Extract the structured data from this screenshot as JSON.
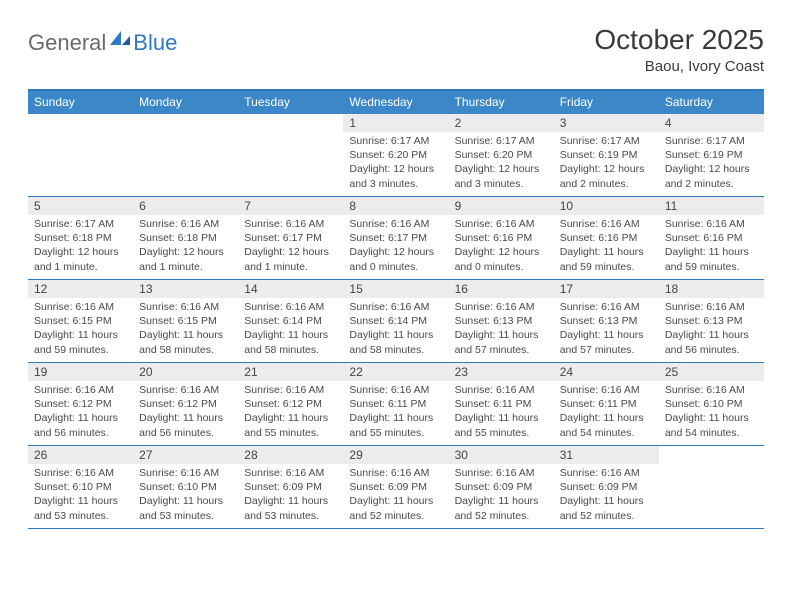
{
  "logo": {
    "part1": "General",
    "part2": "Blue"
  },
  "title": "October 2025",
  "location": "Baou, Ivory Coast",
  "colors": {
    "header_bg": "#3b87c8",
    "border": "#2f78c2",
    "daynum_bg": "#ececec",
    "text": "#4a4a4a"
  },
  "weekdays": [
    "Sunday",
    "Monday",
    "Tuesday",
    "Wednesday",
    "Thursday",
    "Friday",
    "Saturday"
  ],
  "weeks": [
    [
      null,
      null,
      null,
      {
        "n": "1",
        "sr": "Sunrise: 6:17 AM",
        "ss": "Sunset: 6:20 PM",
        "dl": "Daylight: 12 hours and 3 minutes."
      },
      {
        "n": "2",
        "sr": "Sunrise: 6:17 AM",
        "ss": "Sunset: 6:20 PM",
        "dl": "Daylight: 12 hours and 3 minutes."
      },
      {
        "n": "3",
        "sr": "Sunrise: 6:17 AM",
        "ss": "Sunset: 6:19 PM",
        "dl": "Daylight: 12 hours and 2 minutes."
      },
      {
        "n": "4",
        "sr": "Sunrise: 6:17 AM",
        "ss": "Sunset: 6:19 PM",
        "dl": "Daylight: 12 hours and 2 minutes."
      }
    ],
    [
      {
        "n": "5",
        "sr": "Sunrise: 6:17 AM",
        "ss": "Sunset: 6:18 PM",
        "dl": "Daylight: 12 hours and 1 minute."
      },
      {
        "n": "6",
        "sr": "Sunrise: 6:16 AM",
        "ss": "Sunset: 6:18 PM",
        "dl": "Daylight: 12 hours and 1 minute."
      },
      {
        "n": "7",
        "sr": "Sunrise: 6:16 AM",
        "ss": "Sunset: 6:17 PM",
        "dl": "Daylight: 12 hours and 1 minute."
      },
      {
        "n": "8",
        "sr": "Sunrise: 6:16 AM",
        "ss": "Sunset: 6:17 PM",
        "dl": "Daylight: 12 hours and 0 minutes."
      },
      {
        "n": "9",
        "sr": "Sunrise: 6:16 AM",
        "ss": "Sunset: 6:16 PM",
        "dl": "Daylight: 12 hours and 0 minutes."
      },
      {
        "n": "10",
        "sr": "Sunrise: 6:16 AM",
        "ss": "Sunset: 6:16 PM",
        "dl": "Daylight: 11 hours and 59 minutes."
      },
      {
        "n": "11",
        "sr": "Sunrise: 6:16 AM",
        "ss": "Sunset: 6:16 PM",
        "dl": "Daylight: 11 hours and 59 minutes."
      }
    ],
    [
      {
        "n": "12",
        "sr": "Sunrise: 6:16 AM",
        "ss": "Sunset: 6:15 PM",
        "dl": "Daylight: 11 hours and 59 minutes."
      },
      {
        "n": "13",
        "sr": "Sunrise: 6:16 AM",
        "ss": "Sunset: 6:15 PM",
        "dl": "Daylight: 11 hours and 58 minutes."
      },
      {
        "n": "14",
        "sr": "Sunrise: 6:16 AM",
        "ss": "Sunset: 6:14 PM",
        "dl": "Daylight: 11 hours and 58 minutes."
      },
      {
        "n": "15",
        "sr": "Sunrise: 6:16 AM",
        "ss": "Sunset: 6:14 PM",
        "dl": "Daylight: 11 hours and 58 minutes."
      },
      {
        "n": "16",
        "sr": "Sunrise: 6:16 AM",
        "ss": "Sunset: 6:13 PM",
        "dl": "Daylight: 11 hours and 57 minutes."
      },
      {
        "n": "17",
        "sr": "Sunrise: 6:16 AM",
        "ss": "Sunset: 6:13 PM",
        "dl": "Daylight: 11 hours and 57 minutes."
      },
      {
        "n": "18",
        "sr": "Sunrise: 6:16 AM",
        "ss": "Sunset: 6:13 PM",
        "dl": "Daylight: 11 hours and 56 minutes."
      }
    ],
    [
      {
        "n": "19",
        "sr": "Sunrise: 6:16 AM",
        "ss": "Sunset: 6:12 PM",
        "dl": "Daylight: 11 hours and 56 minutes."
      },
      {
        "n": "20",
        "sr": "Sunrise: 6:16 AM",
        "ss": "Sunset: 6:12 PM",
        "dl": "Daylight: 11 hours and 56 minutes."
      },
      {
        "n": "21",
        "sr": "Sunrise: 6:16 AM",
        "ss": "Sunset: 6:12 PM",
        "dl": "Daylight: 11 hours and 55 minutes."
      },
      {
        "n": "22",
        "sr": "Sunrise: 6:16 AM",
        "ss": "Sunset: 6:11 PM",
        "dl": "Daylight: 11 hours and 55 minutes."
      },
      {
        "n": "23",
        "sr": "Sunrise: 6:16 AM",
        "ss": "Sunset: 6:11 PM",
        "dl": "Daylight: 11 hours and 55 minutes."
      },
      {
        "n": "24",
        "sr": "Sunrise: 6:16 AM",
        "ss": "Sunset: 6:11 PM",
        "dl": "Daylight: 11 hours and 54 minutes."
      },
      {
        "n": "25",
        "sr": "Sunrise: 6:16 AM",
        "ss": "Sunset: 6:10 PM",
        "dl": "Daylight: 11 hours and 54 minutes."
      }
    ],
    [
      {
        "n": "26",
        "sr": "Sunrise: 6:16 AM",
        "ss": "Sunset: 6:10 PM",
        "dl": "Daylight: 11 hours and 53 minutes."
      },
      {
        "n": "27",
        "sr": "Sunrise: 6:16 AM",
        "ss": "Sunset: 6:10 PM",
        "dl": "Daylight: 11 hours and 53 minutes."
      },
      {
        "n": "28",
        "sr": "Sunrise: 6:16 AM",
        "ss": "Sunset: 6:09 PM",
        "dl": "Daylight: 11 hours and 53 minutes."
      },
      {
        "n": "29",
        "sr": "Sunrise: 6:16 AM",
        "ss": "Sunset: 6:09 PM",
        "dl": "Daylight: 11 hours and 52 minutes."
      },
      {
        "n": "30",
        "sr": "Sunrise: 6:16 AM",
        "ss": "Sunset: 6:09 PM",
        "dl": "Daylight: 11 hours and 52 minutes."
      },
      {
        "n": "31",
        "sr": "Sunrise: 6:16 AM",
        "ss": "Sunset: 6:09 PM",
        "dl": "Daylight: 11 hours and 52 minutes."
      },
      null
    ]
  ]
}
